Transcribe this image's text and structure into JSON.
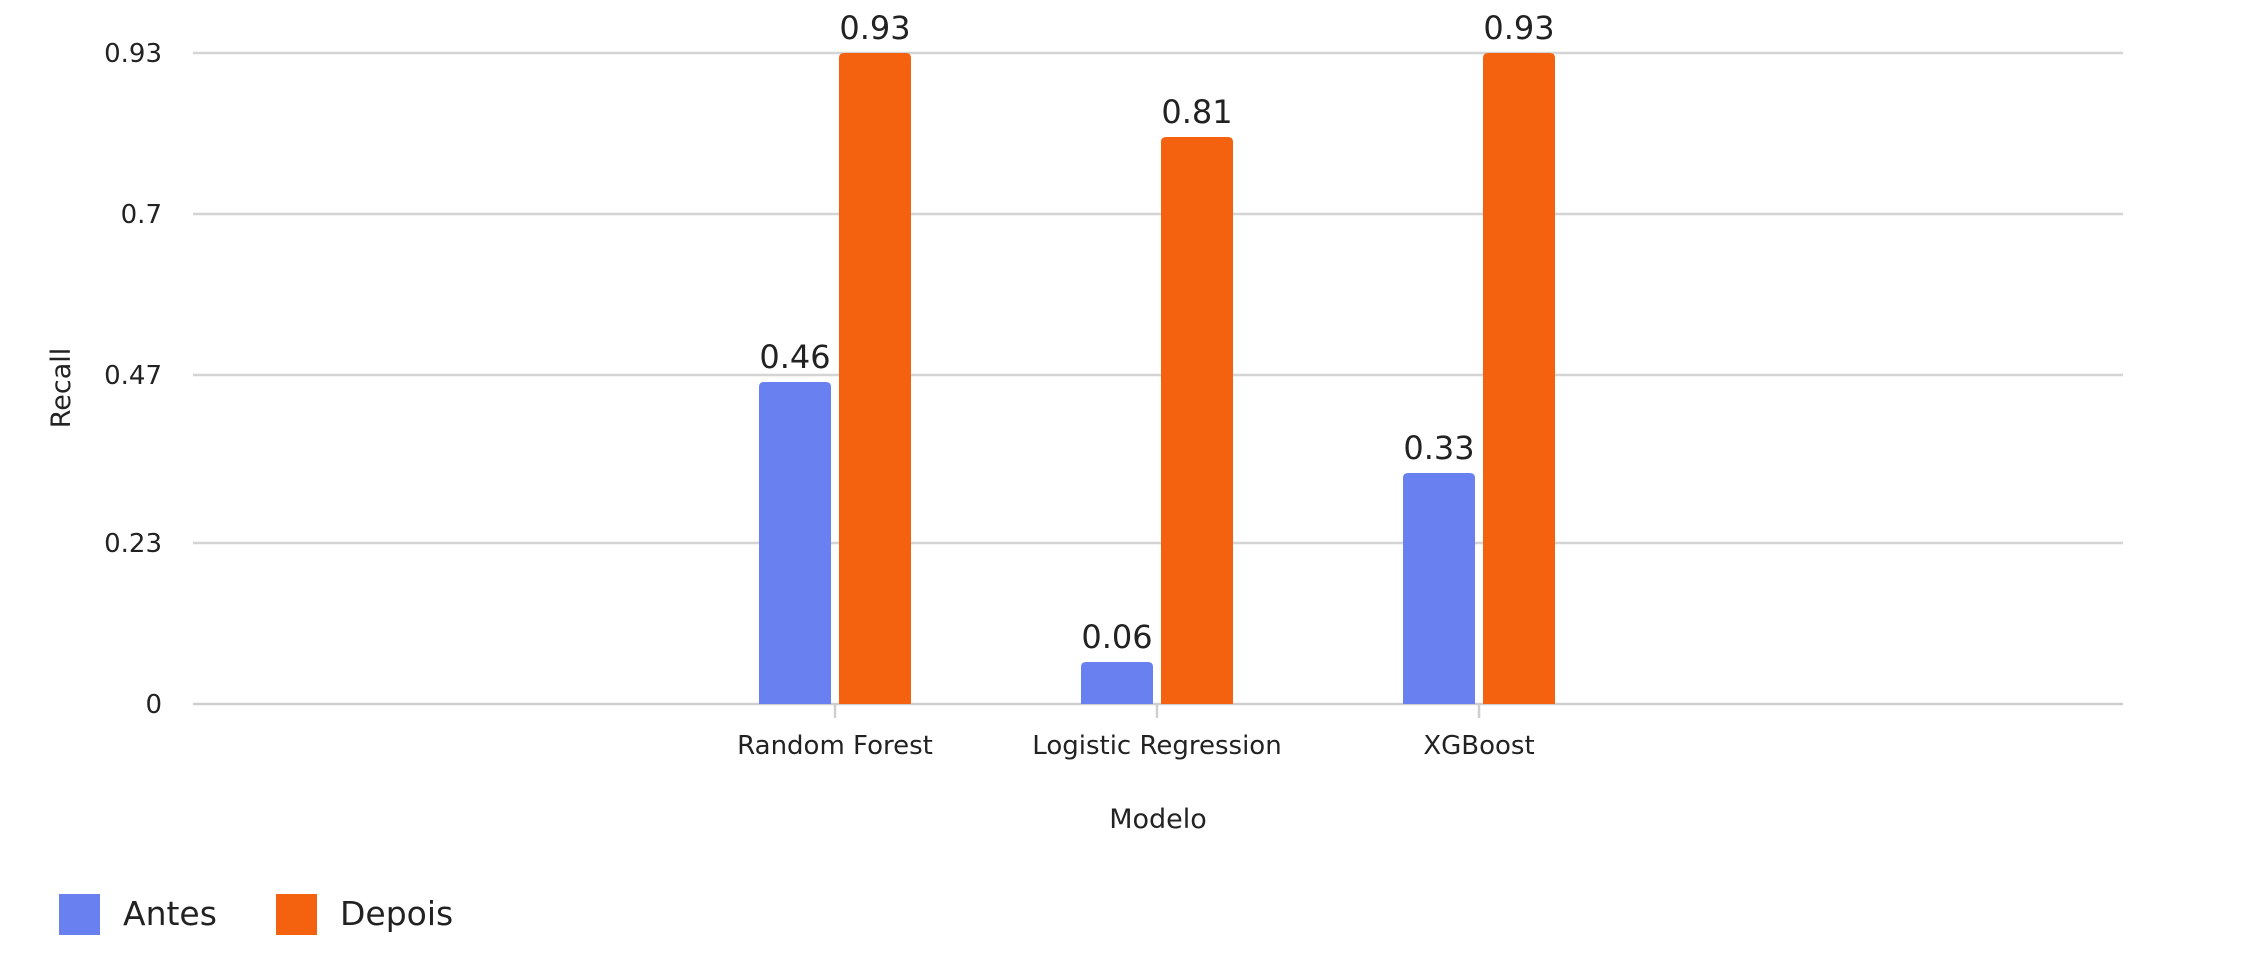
{
  "chart_data": {
    "type": "bar",
    "title": "",
    "xlabel": "Modelo",
    "ylabel": "Recall",
    "categories": [
      "Random Forest",
      "Logistic Regression",
      "XGBoost"
    ],
    "series": [
      {
        "name": "Antes",
        "color": "#6880f0",
        "values": [
          0.46,
          0.06,
          0.33
        ]
      },
      {
        "name": "Depois",
        "color": "#f5620f",
        "values": [
          0.93,
          0.81,
          0.93
        ]
      }
    ],
    "data_labels": [
      [
        "0.46",
        "0.06",
        "0.33"
      ],
      [
        "0.93",
        "0.81",
        "0.93"
      ]
    ],
    "yticks": [
      0,
      0.23,
      0.47,
      0.7,
      0.93
    ],
    "ytick_labels": [
      "0",
      "0.23",
      "0.47",
      "0.7",
      "0.93"
    ],
    "ylim": [
      0,
      0.93
    ],
    "grid": true,
    "legend_position": "bottom-left"
  }
}
